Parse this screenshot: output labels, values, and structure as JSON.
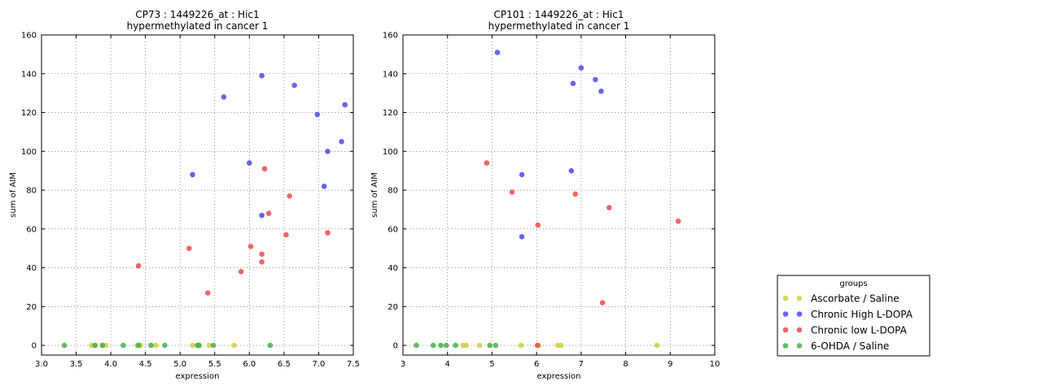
{
  "chart_data": [
    {
      "type": "scatter",
      "title": [
        "CP73 : 1449226_at : Hic1",
        "hypermethylated in cancer 1"
      ],
      "xlabel": "expression",
      "ylabel": "sum of AIM",
      "xlim": [
        3.0,
        7.5
      ],
      "ylim": [
        -5,
        160
      ],
      "xticks": [
        "3.0",
        "3.5",
        "4.0",
        "4.5",
        "5.0",
        "5.5",
        "6.0",
        "6.5",
        "7.0",
        "7.5"
      ],
      "yticks": [
        "0",
        "20",
        "40",
        "60",
        "80",
        "100",
        "120",
        "140",
        "160"
      ],
      "grid": true,
      "series": [
        {
          "name": "Ascorbate / Saline",
          "color": "#d4cc4a",
          "points": [
            [
              3.72,
              0
            ],
            [
              3.78,
              0
            ],
            [
              3.88,
              0
            ],
            [
              3.93,
              0
            ],
            [
              4.38,
              0
            ],
            [
              4.43,
              0
            ],
            [
              4.65,
              0
            ],
            [
              5.18,
              0
            ],
            [
              5.28,
              0
            ],
            [
              5.42,
              0
            ],
            [
              5.78,
              0
            ]
          ]
        },
        {
          "name": "Chronic High L-DOPA",
          "color": "#4b4bef",
          "points": [
            [
              5.18,
              88
            ],
            [
              5.63,
              128
            ],
            [
              6.0,
              94
            ],
            [
              6.18,
              139
            ],
            [
              6.18,
              67
            ],
            [
              6.65,
              134
            ],
            [
              6.98,
              119
            ],
            [
              7.08,
              82
            ],
            [
              7.13,
              100
            ],
            [
              7.33,
              105
            ],
            [
              7.38,
              124
            ]
          ]
        },
        {
          "name": "Chronic low L-DOPA",
          "color": "#ef4b4b",
          "points": [
            [
              4.4,
              41
            ],
            [
              5.13,
              50
            ],
            [
              5.4,
              27
            ],
            [
              5.88,
              38
            ],
            [
              6.02,
              51
            ],
            [
              6.18,
              47
            ],
            [
              6.18,
              43
            ],
            [
              6.22,
              91
            ],
            [
              6.28,
              68
            ],
            [
              6.53,
              57
            ],
            [
              6.58,
              77
            ],
            [
              7.13,
              58
            ]
          ]
        },
        {
          "name": "6-OHDA / Saline",
          "color": "#4caf4c",
          "points": [
            [
              3.33,
              0
            ],
            [
              3.77,
              0
            ],
            [
              3.88,
              0
            ],
            [
              4.18,
              0
            ],
            [
              4.4,
              0
            ],
            [
              4.58,
              0
            ],
            [
              4.78,
              0
            ],
            [
              5.25,
              0
            ],
            [
              5.27,
              0
            ],
            [
              5.48,
              0
            ],
            [
              6.3,
              0
            ]
          ]
        }
      ]
    },
    {
      "type": "scatter",
      "title": [
        "CP101 : 1449226_at : Hic1",
        "hypermethylated in cancer 1"
      ],
      "xlabel": "expression",
      "ylabel": "sum of AIM",
      "xlim": [
        3,
        10
      ],
      "ylim": [
        -5,
        160
      ],
      "xticks": [
        "3",
        "4",
        "5",
        "6",
        "7",
        "8",
        "9",
        "10"
      ],
      "yticks": [
        "0",
        "20",
        "40",
        "60",
        "80",
        "100",
        "120",
        "140",
        "160"
      ],
      "grid": true,
      "series": [
        {
          "name": "Ascorbate / Saline",
          "color": "#d4cc4a",
          "points": [
            [
              4.35,
              0
            ],
            [
              4.42,
              0
            ],
            [
              4.72,
              0
            ],
            [
              5.65,
              0
            ],
            [
              6.05,
              0
            ],
            [
              6.48,
              0
            ],
            [
              6.55,
              0
            ],
            [
              8.7,
              0
            ]
          ]
        },
        {
          "name": "Chronic High L-DOPA",
          "color": "#4b4bef",
          "points": [
            [
              5.12,
              151
            ],
            [
              5.67,
              88
            ],
            [
              5.67,
              56
            ],
            [
              6.78,
              90
            ],
            [
              6.82,
              135
            ],
            [
              7.0,
              143
            ],
            [
              7.32,
              137
            ],
            [
              7.45,
              131
            ]
          ]
        },
        {
          "name": "Chronic low L-DOPA",
          "color": "#ef4b4b",
          "points": [
            [
              4.88,
              94
            ],
            [
              5.45,
              79
            ],
            [
              6.03,
              62
            ],
            [
              6.87,
              78
            ],
            [
              7.48,
              22
            ],
            [
              7.63,
              71
            ],
            [
              9.18,
              64
            ],
            [
              6.02,
              0
            ]
          ]
        },
        {
          "name": "6-OHDA / Saline",
          "color": "#4caf4c",
          "points": [
            [
              3.3,
              0
            ],
            [
              3.68,
              0
            ],
            [
              3.85,
              0
            ],
            [
              3.97,
              0
            ],
            [
              4.18,
              0
            ],
            [
              4.95,
              0
            ],
            [
              5.08,
              0
            ]
          ]
        }
      ]
    }
  ],
  "legend": {
    "title": "groups",
    "placement": "lower-right",
    "items": [
      {
        "label": "Ascorbate / Saline",
        "color": "#d4cc4a"
      },
      {
        "label": "Chronic High L-DOPA",
        "color": "#4b4bef"
      },
      {
        "label": "Chronic low L-DOPA",
        "color": "#ef4b4b"
      },
      {
        "label": "6-OHDA / Saline",
        "color": "#4caf4c"
      }
    ]
  }
}
